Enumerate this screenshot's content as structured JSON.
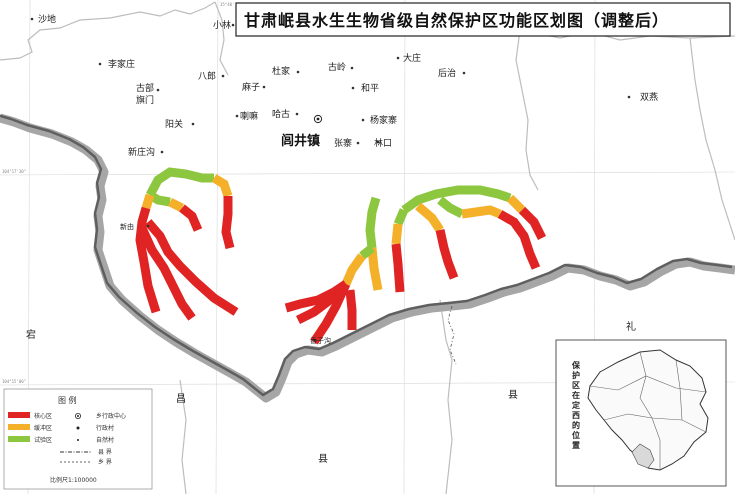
{
  "title": "甘肃岷县水生生物省级自然保护区功能区划图（调整后）",
  "colors": {
    "core": "#e02424",
    "buffer": "#f5b02a",
    "experimental": "#8dc63f",
    "border_shadow": "#a0a0a0",
    "county_line": "#bdbdbd"
  },
  "places": {
    "shadi": "沙地",
    "xiaolin": "小林",
    "lijiazhuang": "李家庄",
    "balang": "八郎",
    "dujia": "杜家",
    "guling": "古岭",
    "dazhuang": "大庄",
    "houye": "后治",
    "shuangyan": "双燕",
    "gubu": "古部",
    "qimen": "旗门",
    "mazi": "麻子",
    "heping": "和平",
    "yangguan": "阳关",
    "lama": "喇嘛",
    "hagu": "哈古",
    "yangjiazhai": "杨家寨",
    "xinzhuanggou": "新庄沟",
    "zhangzhai": "张寨",
    "linkou": "林口",
    "xinyou": "新由",
    "xiangzigou": "香子沟"
  },
  "town": "闾井镇",
  "county_labels": {
    "left": "宕",
    "lower_left": "昌",
    "bottom": "县",
    "right_mid": "县",
    "right_top": "礼"
  },
  "legend": {
    "heading": "图    例",
    "items": [
      {
        "label": "核心区",
        "color": "#e02424"
      },
      {
        "label": "缓冲区",
        "color": "#f5b02a"
      },
      {
        "label": "试验区",
        "color": "#8dc63f"
      }
    ],
    "symbols": [
      {
        "label": "乡行政中心",
        "icon": "town-center-icon"
      },
      {
        "label": "行政村",
        "icon": "village-icon"
      },
      {
        "label": "自然村",
        "icon": "hamlet-icon"
      },
      {
        "label": "县 界",
        "icon": "county-border-icon"
      },
      {
        "label": "乡 界",
        "icon": "township-border-icon"
      }
    ],
    "scale": "比例尺1:100000"
  },
  "inset": {
    "label": "保护区在定西的位置"
  }
}
